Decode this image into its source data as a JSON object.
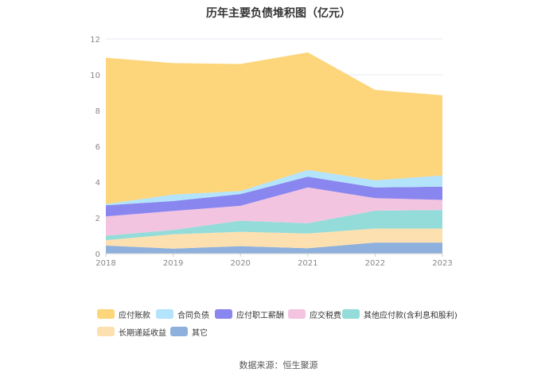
{
  "chart_data": {
    "type": "area",
    "title": "历年主要负债堆积图（亿元）",
    "x": [
      "2018",
      "2019",
      "2020",
      "2021",
      "2022",
      "2023"
    ],
    "yticks": [
      "0",
      "2",
      "4",
      "6",
      "8",
      "10",
      "12"
    ],
    "ylim": [
      0,
      12
    ],
    "stacked": true,
    "grid": true,
    "legend_position": "bottom",
    "series": [
      {
        "name": "其它",
        "color": "#8eb0dc",
        "values": [
          0.45,
          0.28,
          0.42,
          0.3,
          0.62,
          0.62
        ]
      },
      {
        "name": "长期递延收益",
        "color": "#fde0b0",
        "values": [
          0.3,
          0.8,
          0.8,
          0.82,
          0.78,
          0.78
        ]
      },
      {
        "name": "其他应付款(含利息和股利)",
        "color": "#94dcd9",
        "values": [
          0.25,
          0.24,
          0.62,
          0.58,
          1.0,
          1.04
        ]
      },
      {
        "name": "应交税费",
        "color": "#f3c4e0",
        "values": [
          1.08,
          1.06,
          0.83,
          2.0,
          0.7,
          0.56
        ]
      },
      {
        "name": "应付职工薪酬",
        "color": "#8a86ef",
        "values": [
          0.62,
          0.56,
          0.66,
          0.6,
          0.6,
          0.74
        ]
      },
      {
        "name": "合同负债",
        "color": "#b3e4fb",
        "values": [
          0.07,
          0.36,
          0.17,
          0.38,
          0.4,
          0.63
        ]
      },
      {
        "name": "应付账款",
        "color": "#fdd57a",
        "values": [
          8.18,
          7.35,
          7.1,
          6.57,
          5.05,
          4.48
        ]
      }
    ],
    "legend_order": [
      "应付账款",
      "合同负债",
      "应付职工薪酬",
      "应交税费",
      "其他应付款(含利息和股利)",
      "长期递延收益",
      "其它"
    ]
  },
  "source": "数据来源：恒生聚源"
}
